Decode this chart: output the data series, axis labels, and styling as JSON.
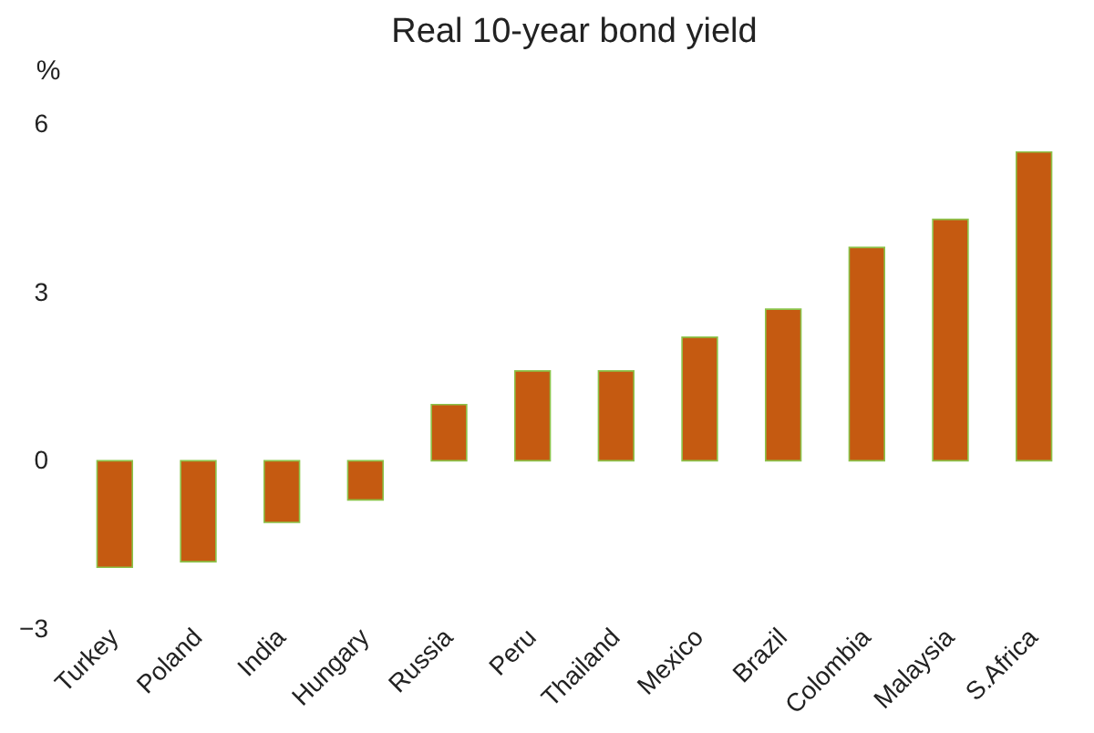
{
  "chart_data": {
    "type": "bar",
    "title": "Real 10-year bond yield",
    "ylabel": "%",
    "categories": [
      "Turkey",
      "Poland",
      "India",
      "Hungary",
      "Russia",
      "Peru",
      "Thailand",
      "Mexico",
      "Brazil",
      "Colombia",
      "Malaysia",
      "S.Africa"
    ],
    "values": [
      -1.9,
      -1.8,
      -1.1,
      -0.7,
      1.0,
      1.6,
      1.6,
      2.2,
      2.7,
      3.8,
      4.3,
      5.5
    ],
    "color": "#c55a11",
    "ylim": [
      -3,
      6
    ],
    "yticks": [
      -3,
      0,
      3,
      6
    ],
    "grid": false
  }
}
